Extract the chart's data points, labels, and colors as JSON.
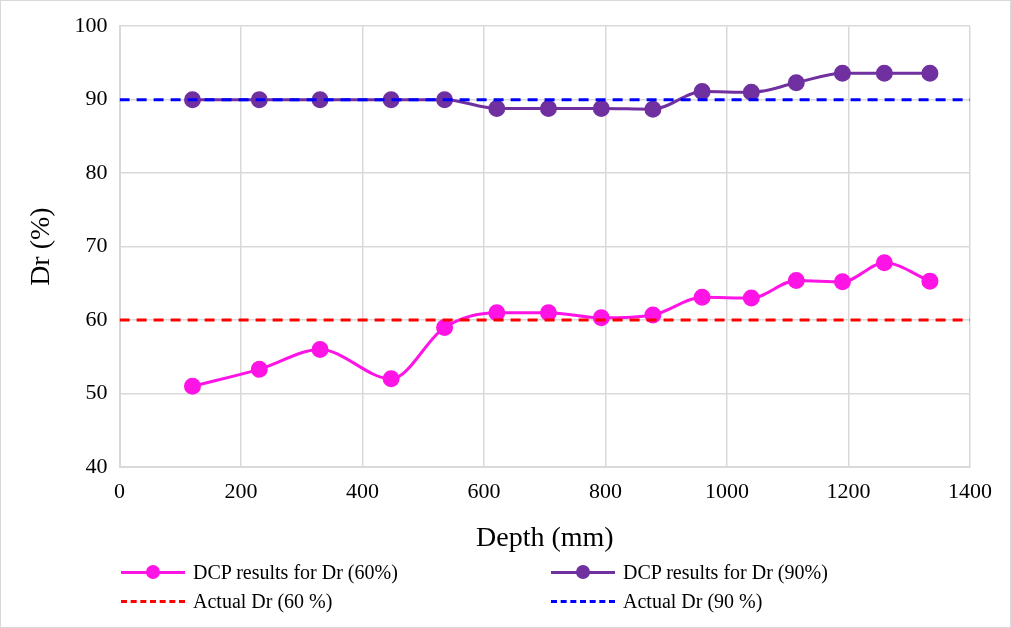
{
  "chart_data": {
    "type": "line",
    "xlabel": "Depth (mm)",
    "ylabel": "Dr (%)",
    "x": [
      120,
      230,
      330,
      447,
      535,
      621,
      706,
      793,
      878,
      959,
      1040,
      1114,
      1190,
      1259,
      1334
    ],
    "series": [
      {
        "name": "DCP results for Dr (60%)",
        "color": "#ff14e6",
        "values": [
          51,
          53.3,
          56,
          52,
          59,
          61,
          61,
          60.3,
          60.7,
          63.1,
          63,
          65.4,
          65.2,
          67.8,
          65.3
        ]
      },
      {
        "name": "DCP results for Dr (90%)",
        "color": "#7030a0",
        "values": [
          90,
          90,
          90,
          90,
          90,
          88.8,
          88.8,
          88.8,
          88.7,
          91.1,
          91,
          92.3,
          93.6,
          93.6,
          93.6
        ]
      }
    ],
    "ref_lines": [
      {
        "axis": "y",
        "value": 60,
        "label": "Actual Dr (60 %)",
        "color": "#ff0000",
        "line_style": "dashed"
      },
      {
        "axis": "y",
        "value": 90,
        "label": "Actual Dr (90 %)",
        "color": "#0000ff",
        "line_style": "dashed"
      }
    ],
    "xlim": [
      0,
      1400
    ],
    "xticks": [
      0,
      200,
      400,
      600,
      800,
      1000,
      1200,
      1400
    ],
    "ylim": [
      40,
      100
    ],
    "yticks": [
      40,
      50,
      60,
      70,
      80,
      90,
      100
    ],
    "grid": true,
    "legend": "bottom",
    "marker": "circle",
    "line_style": "solid"
  }
}
